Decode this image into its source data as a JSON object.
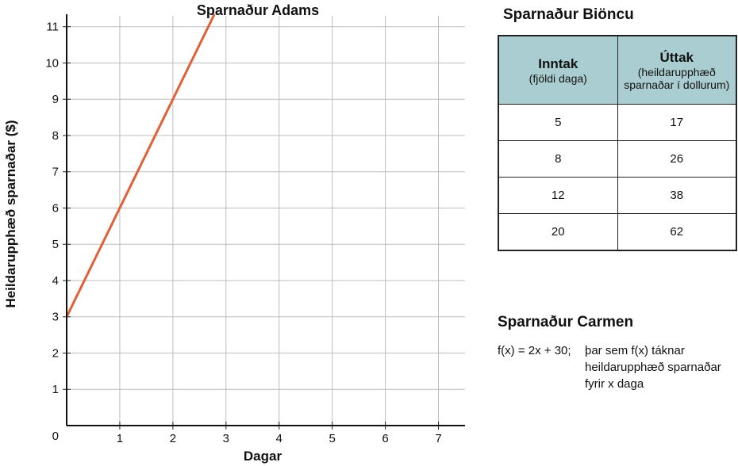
{
  "chart_data": {
    "type": "line",
    "title": "Sparnaður Adams",
    "xlabel": "Dagar",
    "ylabel": "Heildarupphæð sparnaðar ($)",
    "xlim": [
      0,
      7.5
    ],
    "ylim": [
      0,
      11.3
    ],
    "x_ticks": [
      "1",
      "2",
      "3",
      "4",
      "5",
      "6",
      "7"
    ],
    "y_ticks": [
      "1",
      "2",
      "3",
      "4",
      "5",
      "6",
      "7",
      "8",
      "9",
      "10",
      "11"
    ],
    "origin_label": "0",
    "grid": true,
    "series": [
      {
        "color": "#e0603a",
        "x": [
          0,
          2.8
        ],
        "y": [
          3,
          11.4
        ]
      }
    ]
  },
  "bionca": {
    "title": "Sparnaður Biöncu",
    "col1_main": "Inntak",
    "col1_sub": "(fjöldi daga)",
    "col2_main": "Úttak",
    "col2_sub": "(heildarupphæð sparnaðar í dollurum)",
    "rows": [
      {
        "input": "5",
        "output": "17"
      },
      {
        "input": "8",
        "output": "26"
      },
      {
        "input": "12",
        "output": "38"
      },
      {
        "input": "20",
        "output": "62"
      }
    ]
  },
  "carmen": {
    "title": "Sparnaður Carmen",
    "formula_lead": "f(x) = 2x + 30;",
    "formula_desc": "þar sem f(x) táknar heildarupphæð sparnaðar fyrir x daga"
  }
}
